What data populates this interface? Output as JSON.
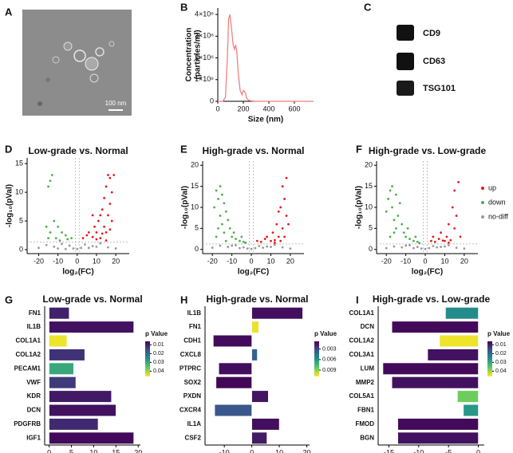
{
  "panel_labels": [
    "A",
    "B",
    "C",
    "D",
    "E",
    "F",
    "G",
    "H",
    "I"
  ],
  "image": {
    "scale_bar": "100 nm"
  },
  "blot": {
    "labels": [
      "CD9",
      "CD63",
      "TSG101"
    ]
  },
  "chart_data": [
    {
      "type": "line",
      "x_label": "Size (nm)",
      "y_label": [
        "Concentration",
        "(particles/ml)"
      ],
      "color": "#f08080",
      "x": [
        0,
        40,
        60,
        75,
        85,
        95,
        110,
        120,
        130,
        140,
        150,
        160,
        175,
        190,
        200,
        215,
        225,
        240,
        260,
        300,
        400,
        500,
        600,
        750
      ],
      "values": [
        0,
        0,
        200000,
        2000000,
        3800000,
        4000000,
        3200000,
        2600000,
        2400000,
        2600000,
        2200000,
        1300000,
        500000,
        300000,
        500000,
        400000,
        150000,
        50000,
        20000,
        0,
        0,
        0,
        0,
        0
      ],
      "xlim": [
        0,
        750
      ],
      "xticks": [
        0,
        200,
        400,
        600
      ],
      "ylim": [
        0,
        4300000
      ],
      "yticks": [
        0,
        {
          "value": 1000000,
          "label": "1×10⁶"
        },
        {
          "value": 2000000,
          "label": "2×10⁶"
        },
        {
          "value": 3000000,
          "label": "3×10⁶"
        },
        {
          "value": 4000000,
          "label": "4×10⁶"
        }
      ]
    },
    {
      "type": "scatter",
      "title": "Low-grade vs. Normal",
      "x_label": "log₂(FC)",
      "y_label": "-log₁₀(pVal)",
      "legend": false,
      "xlim": [
        -26,
        27
      ],
      "xticks": [
        -20,
        -10,
        0,
        10,
        20
      ],
      "ylim": [
        -0.7,
        16
      ],
      "yticks": [
        0,
        5,
        10,
        15
      ],
      "hline": 1.3,
      "vlines": [
        -1,
        1
      ],
      "series": [
        {
          "color": "#999999",
          "x": [
            -20,
            -16,
            -12,
            -8,
            -4,
            -2,
            0,
            2,
            4,
            8,
            12,
            16,
            20,
            -6,
            6,
            10,
            -10
          ],
          "values": [
            0.3,
            0.8,
            0.5,
            1,
            0.7,
            0.2,
            0.1,
            0.3,
            0.9,
            0.6,
            1.1,
            0.4,
            0.2,
            0.1,
            0.3,
            0.5,
            0.2
          ]
        },
        {
          "color": "#4daf4a",
          "x": [
            -3,
            -5,
            -6,
            -8,
            -10,
            -12,
            -14,
            -15,
            -16,
            -14,
            -13,
            -15,
            -11,
            -9
          ],
          "values": [
            2,
            1.8,
            2.5,
            3,
            4,
            5,
            3,
            2,
            4,
            12,
            13,
            11,
            2,
            1.6
          ]
        },
        {
          "color": "#e41a1c",
          "x": [
            3,
            5,
            6,
            8,
            9,
            10,
            11,
            12,
            12,
            13,
            14,
            14,
            15,
            15,
            16,
            16,
            17,
            17,
            18,
            18,
            19,
            8,
            10,
            13,
            15,
            17
          ],
          "values": [
            2,
            2.5,
            3,
            2.2,
            4,
            3,
            5,
            6,
            2,
            7,
            4,
            9,
            3,
            11,
            6,
            13,
            8,
            12.5,
            5,
            10,
            13,
            6,
            1.8,
            2.8,
            1.6,
            3.5
          ]
        }
      ]
    },
    {
      "type": "scatter",
      "title": "High-grade vs. Normal",
      "x_label": "log₂(FC)",
      "y_label": "-log₁₀(pVal)",
      "legend": false,
      "xlim": [
        -25,
        27
      ],
      "xticks": [
        -20,
        -10,
        0,
        10,
        20
      ],
      "ylim": [
        -1,
        21
      ],
      "yticks": [
        0,
        5,
        10,
        15,
        20
      ],
      "hline": 1.3,
      "vlines": [
        -1,
        1
      ],
      "series": [
        {
          "color": "#999999",
          "x": [
            -20,
            -16,
            -12,
            -8,
            -4,
            -2,
            0,
            2,
            4,
            8,
            12,
            16,
            20,
            -6,
            6,
            10,
            -10
          ],
          "values": [
            0.4,
            0.9,
            0.6,
            1,
            0.5,
            0.2,
            0.1,
            0.3,
            0.8,
            0.7,
            1.1,
            0.5,
            0.2,
            0.3,
            0.4,
            0.6,
            0.9
          ]
        },
        {
          "color": "#4daf4a",
          "x": [
            -19,
            -18,
            -17,
            -16,
            -16,
            -15,
            -14,
            -14,
            -13,
            -12,
            -11,
            -10,
            -9,
            -8,
            -6,
            -5,
            -4,
            -3,
            -17,
            -15,
            -13,
            -18
          ],
          "values": [
            10,
            14,
            12,
            8,
            15,
            6,
            11,
            4,
            9,
            7,
            5,
            3,
            4,
            2.5,
            2,
            3,
            1.8,
            1.6,
            5,
            13,
            2,
            3
          ]
        },
        {
          "color": "#e41a1c",
          "x": [
            3,
            5,
            7,
            8,
            10,
            11,
            12,
            13,
            14,
            15,
            16,
            16,
            17,
            17,
            18,
            18,
            19,
            15,
            12,
            14
          ],
          "values": [
            2,
            1.8,
            2.5,
            3,
            2,
            4,
            2.2,
            6,
            3,
            10,
            5,
            15,
            3,
            12,
            8,
            17,
            6,
            2,
            1.6,
            9
          ]
        }
      ]
    },
    {
      "type": "scatter",
      "title": "High-grade vs. Low-grade",
      "x_label": "log₂(FC)",
      "y_label": "-log₁₀(pVal)",
      "legend": true,
      "xlim": [
        -25,
        27
      ],
      "xticks": [
        -20,
        -10,
        0,
        10,
        20
      ],
      "ylim": [
        -1,
        21
      ],
      "yticks": [
        0,
        5,
        10,
        15,
        20
      ],
      "hline": 1.3,
      "vlines": [
        -1,
        1
      ],
      "series": [
        {
          "name": "up",
          "color": "#e41a1c",
          "x": [
            3,
            4,
            5,
            7,
            8,
            10,
            11,
            12,
            13,
            14,
            15,
            15,
            16,
            17,
            18,
            12,
            9
          ],
          "values": [
            2,
            3,
            1.8,
            2.5,
            4,
            2,
            3,
            6,
            2.2,
            10,
            5,
            14,
            8,
            16,
            3,
            1.6,
            2.1
          ]
        },
        {
          "name": "down",
          "color": "#4daf4a",
          "x": [
            -20,
            -19,
            -18,
            -17,
            -17,
            -16,
            -15,
            -15,
            -14,
            -13,
            -12,
            -11,
            -10,
            -9,
            -8,
            -6,
            -5,
            -4,
            -3,
            -16,
            -18
          ],
          "values": [
            9,
            12,
            14,
            10,
            15,
            7,
            13,
            5,
            8,
            11,
            6,
            4,
            3,
            5,
            2.5,
            2,
            3,
            1.8,
            1.5,
            4,
            3
          ]
        },
        {
          "name": "no-diff",
          "color": "#999999",
          "x": [
            -20,
            -16,
            -12,
            -8,
            -4,
            -2,
            0,
            2,
            4,
            8,
            12,
            16,
            20,
            -6,
            6,
            10,
            -10
          ],
          "values": [
            0.3,
            0.7,
            0.5,
            1,
            0.6,
            0.2,
            0.1,
            0.3,
            0.8,
            0.6,
            1,
            0.4,
            0.2,
            0.3,
            0.5,
            0.7,
            0.9
          ]
        }
      ]
    },
    {
      "type": "hbar",
      "title": "Low-grade vs. Normal",
      "x_label": "log₂(FC)",
      "cbar_title": "p Value",
      "categories": [
        "FN1",
        "IL1B",
        "COL1A1",
        "COL1A2",
        "PECAM1",
        "VWF",
        "KDR",
        "DCN",
        "PDGFRB",
        "IGF1"
      ],
      "values": [
        4.5,
        19,
        4,
        8,
        5.5,
        6,
        14,
        15,
        11,
        19
      ],
      "p_values": [
        0.01,
        0.008,
        0.045,
        0.012,
        0.03,
        0.013,
        0.009,
        0.008,
        0.011,
        0.007
      ],
      "xlim": [
        -1,
        20.5
      ],
      "xticks": [
        0,
        5,
        10,
        15,
        20
      ],
      "colormap": [
        "#440154",
        "#3b528b",
        "#21918c",
        "#5ec962",
        "#fde725"
      ],
      "clim": [
        0.006,
        0.046
      ],
      "cbar_ticks": [
        0.01,
        0.02,
        0.03,
        0.04
      ]
    },
    {
      "type": "hbar",
      "title": "High-grade vs. Normal",
      "x_label": "log₂(FC)",
      "cbar_title": "p Value",
      "categories": [
        "IL1B",
        "FN1",
        "CDH1",
        "CXCL8",
        "PTPRC",
        "SOX2",
        "PXDN",
        "CXCR4",
        "IL1A",
        "CSF2"
      ],
      "values": [
        18.5,
        2.5,
        -14,
        2,
        -12,
        -13,
        6,
        -13.5,
        10,
        5.5
      ],
      "p_values": [
        0.0012,
        0.0105,
        0.0011,
        0.004,
        0.0012,
        0.001,
        0.0014,
        0.0035,
        0.0012,
        0.0016
      ],
      "xlim": [
        -17,
        21
      ],
      "xticks": [
        -10,
        0,
        10,
        20
      ],
      "colormap": [
        "#440154",
        "#3b528b",
        "#21918c",
        "#5ec962",
        "#fde725"
      ],
      "clim": [
        0.0008,
        0.0108
      ],
      "cbar_ticks": [
        0.003,
        0.006,
        0.009
      ]
    },
    {
      "type": "hbar",
      "title": "High-grade vs. Low-grade",
      "x_label": "log₂(FC)",
      "cbar_title": "p Value",
      "categories": [
        "COL1A1",
        "DCN",
        "COL1A2",
        "COL3A1",
        "LUM",
        "MMP2",
        "COL5A1",
        "FBN1",
        "FMOD",
        "BGN"
      ],
      "values": [
        -5.5,
        -14.5,
        -6.5,
        -8.5,
        -16,
        -14.5,
        -3.5,
        -2.5,
        -13.5,
        -13.5
      ],
      "p_values": [
        0.025,
        0.007,
        0.045,
        0.008,
        0.007,
        0.008,
        0.037,
        0.027,
        0.007,
        0.008
      ],
      "xlim": [
        -16.8,
        1
      ],
      "xticks": [
        -15,
        -10,
        -5,
        0
      ],
      "colormap": [
        "#440154",
        "#3b528b",
        "#21918c",
        "#5ec962",
        "#fde725"
      ],
      "clim": [
        0.006,
        0.046
      ],
      "cbar_ticks": [
        0.01,
        0.02,
        0.03,
        0.04
      ]
    }
  ]
}
